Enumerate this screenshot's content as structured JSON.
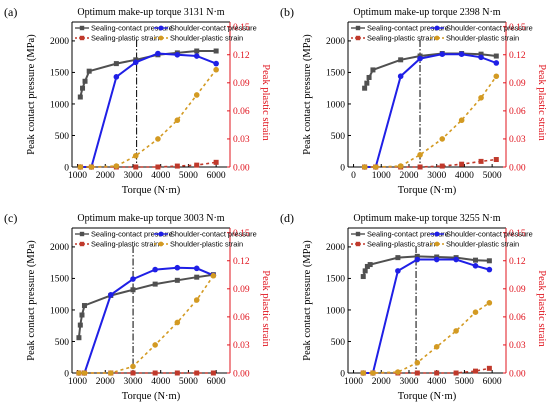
{
  "colors": {
    "sealing_contact": "#505050",
    "shoulder_contact": "#1f1fe6",
    "sealing_plastic": "#c0392b",
    "shoulder_plastic": "#d39a22",
    "right_axis": "#e0141e",
    "axis": "#000000"
  },
  "chart_data": [
    {
      "type": "line",
      "panel_label": "(a)",
      "title": "Optimum make-up torque 3131 N·m",
      "xlabel": "Torque (N·m)",
      "ylabel": "Peak contact pressure (MPa)",
      "y2label": "Peak plastic strain",
      "xlim": [
        800,
        6500
      ],
      "xticks": [
        1000,
        2000,
        3000,
        4000,
        5000,
        6000
      ],
      "ylim": [
        0,
        2300
      ],
      "yticks": [
        0,
        500,
        1000,
        1500,
        2000
      ],
      "y2lim": [
        0,
        0.155
      ],
      "y2ticks": [
        0.0,
        0.03,
        0.06,
        0.09,
        0.12,
        0.15
      ],
      "vline_x": 3131,
      "grid": false,
      "legend": "top, two columns",
      "series": [
        {
          "name": "Sealing-contact pressure",
          "axis": "left",
          "x": [
            1100,
            1180,
            1270,
            1420,
            2400,
            3100,
            3900,
            4600,
            5300,
            6000
          ],
          "y": [
            1110,
            1250,
            1360,
            1520,
            1640,
            1700,
            1780,
            1810,
            1840,
            1840
          ]
        },
        {
          "name": "Shoulder-contact pressure",
          "axis": "left",
          "x": [
            1100,
            1500,
            2400,
            3100,
            3900,
            4600,
            5300,
            6000
          ],
          "y": [
            0,
            0,
            1430,
            1660,
            1800,
            1780,
            1760,
            1640
          ]
        },
        {
          "name": "Sealing-plastic strain",
          "axis": "right",
          "x": [
            1100,
            1500,
            2400,
            3100,
            3900,
            4600,
            5300,
            6000
          ],
          "y": [
            0,
            0,
            0,
            0,
            0,
            0.001,
            0.002,
            0.005
          ]
        },
        {
          "name": "Shoulder-plastic strain",
          "axis": "right",
          "x": [
            1100,
            1500,
            2400,
            3100,
            3900,
            4600,
            5300,
            6000
          ],
          "y": [
            0,
            0,
            0.001,
            0.012,
            0.03,
            0.05,
            0.077,
            0.104
          ]
        }
      ]
    },
    {
      "type": "line",
      "panel_label": "(b)",
      "title": "Optimum make-up torque 2398 N·m",
      "xlabel": "Torque (N·m)",
      "ylabel": "Peak contact pressure (MPa)",
      "y2label": "Peak plastic strain",
      "xlim": [
        -200,
        5500
      ],
      "xticks": [
        0,
        1000,
        2000,
        3000,
        4000,
        5000
      ],
      "ylim": [
        0,
        2300
      ],
      "yticks": [
        0,
        500,
        1000,
        1500,
        2000
      ],
      "y2lim": [
        0,
        0.155
      ],
      "y2ticks": [
        0.0,
        0.03,
        0.06,
        0.09,
        0.12,
        0.15
      ],
      "vline_x": 2398,
      "grid": false,
      "legend": "top, two columns",
      "series": [
        {
          "name": "Sealing-contact pressure",
          "axis": "left",
          "x": [
            400,
            480,
            560,
            700,
            1700,
            2400,
            3200,
            3900,
            4600,
            5150
          ],
          "y": [
            1250,
            1330,
            1420,
            1540,
            1700,
            1760,
            1800,
            1800,
            1790,
            1760
          ]
        },
        {
          "name": "Shoulder-contact pressure",
          "axis": "left",
          "x": [
            400,
            800,
            1700,
            2400,
            3200,
            3900,
            4600,
            5150
          ],
          "y": [
            0,
            0,
            1440,
            1720,
            1790,
            1790,
            1740,
            1650
          ]
        },
        {
          "name": "Sealing-plastic strain",
          "axis": "right",
          "x": [
            400,
            800,
            1700,
            2400,
            3200,
            3900,
            4600,
            5150
          ],
          "y": [
            0,
            0,
            0,
            0,
            0.001,
            0.003,
            0.006,
            0.008
          ]
        },
        {
          "name": "Shoulder-plastic strain",
          "axis": "right",
          "x": [
            400,
            800,
            1700,
            2400,
            3200,
            3900,
            4600,
            5150
          ],
          "y": [
            0,
            0,
            0.001,
            0.013,
            0.03,
            0.05,
            0.074,
            0.097
          ]
        }
      ]
    },
    {
      "type": "line",
      "panel_label": "(c)",
      "title": "Optimum make-up torque 3003 N·m",
      "xlabel": "Torque (N·m)",
      "ylabel": "Peak contact pressure (MPa)",
      "y2label": "Peak plastic strain",
      "xlim": [
        800,
        6500
      ],
      "xticks": [
        1000,
        2000,
        3000,
        4000,
        5000,
        6000
      ],
      "ylim": [
        0,
        2300
      ],
      "yticks": [
        0,
        500,
        1000,
        1500,
        2000
      ],
      "y2lim": [
        0,
        0.155
      ],
      "y2ticks": [
        0.0,
        0.03,
        0.06,
        0.09,
        0.12,
        0.15
      ],
      "vline_x": 3003,
      "grid": false,
      "legend": "top, two columns",
      "series": [
        {
          "name": "Sealing-contact pressure",
          "axis": "left",
          "x": [
            1050,
            1100,
            1160,
            1250,
            2200,
            3000,
            3800,
            4600,
            5300,
            5900
          ],
          "y": [
            560,
            760,
            920,
            1070,
            1230,
            1320,
            1410,
            1470,
            1520,
            1560
          ]
        },
        {
          "name": "Shoulder-contact pressure",
          "axis": "left",
          "x": [
            1050,
            1250,
            2200,
            3000,
            3800,
            4600,
            5300,
            5900
          ],
          "y": [
            0,
            0,
            1240,
            1490,
            1640,
            1670,
            1660,
            1550
          ]
        },
        {
          "name": "Sealing-plastic strain",
          "axis": "right",
          "x": [
            1050,
            1250,
            2200,
            3000,
            3800,
            4600,
            5300,
            5900
          ],
          "y": [
            0,
            0,
            0,
            0,
            0,
            0,
            0,
            0
          ]
        },
        {
          "name": "Shoulder-plastic strain",
          "axis": "right",
          "x": [
            1050,
            1250,
            2200,
            3000,
            3800,
            4600,
            5300,
            5900
          ],
          "y": [
            0,
            0,
            0,
            0.007,
            0.03,
            0.054,
            0.078,
            0.104
          ]
        }
      ]
    },
    {
      "type": "line",
      "panel_label": "(d)",
      "title": "Optimum make-up torque 3255 N·m",
      "xlabel": "Torque (N·m)",
      "ylabel": "Peak contact pressure (MPa)",
      "y2label": "Peak plastic strain",
      "xlim": [
        800,
        6500
      ],
      "xticks": [
        1000,
        2000,
        3000,
        4000,
        5000,
        6000
      ],
      "ylim": [
        0,
        2300
      ],
      "yticks": [
        0,
        500,
        1000,
        1500,
        2000
      ],
      "y2lim": [
        0,
        0.155
      ],
      "y2ticks": [
        0.0,
        0.03,
        0.06,
        0.09,
        0.12,
        0.15
      ],
      "vline_x": 3255,
      "grid": false,
      "legend": "top, two columns",
      "series": [
        {
          "name": "Sealing-contact pressure",
          "axis": "left",
          "x": [
            1350,
            1420,
            1500,
            1600,
            2600,
            3300,
            4000,
            4700,
            5400,
            5900
          ],
          "y": [
            1530,
            1620,
            1690,
            1720,
            1830,
            1850,
            1840,
            1830,
            1790,
            1780
          ]
        },
        {
          "name": "Shoulder-contact pressure",
          "axis": "left",
          "x": [
            1350,
            1700,
            2600,
            3300,
            4000,
            4700,
            5400,
            5900
          ],
          "y": [
            0,
            0,
            1620,
            1800,
            1800,
            1800,
            1700,
            1640
          ]
        },
        {
          "name": "Sealing-plastic strain",
          "axis": "right",
          "x": [
            1350,
            1700,
            2600,
            3300,
            4000,
            4700,
            5400,
            5900
          ],
          "y": [
            0,
            0,
            0,
            0,
            0,
            0,
            0.002,
            0.005
          ]
        },
        {
          "name": "Shoulder-plastic strain",
          "axis": "right",
          "x": [
            1350,
            1700,
            2600,
            3300,
            4000,
            4700,
            5400,
            5900
          ],
          "y": [
            0,
            0,
            0.001,
            0.011,
            0.028,
            0.045,
            0.065,
            0.075
          ]
        }
      ]
    }
  ]
}
